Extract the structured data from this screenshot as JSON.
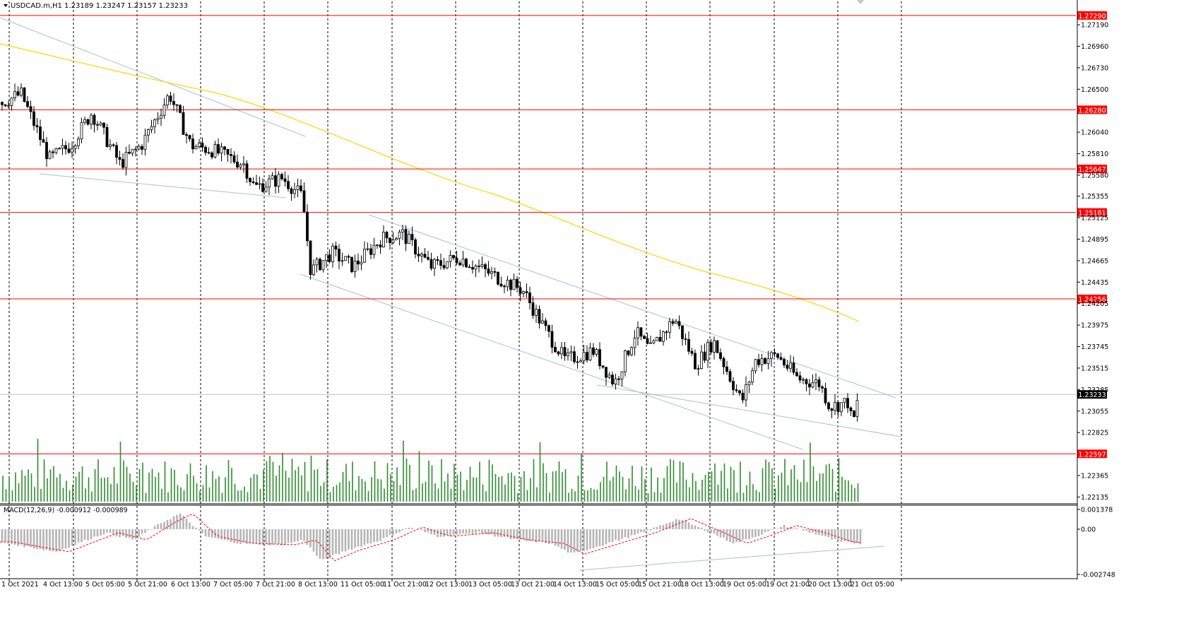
{
  "title": {
    "symbol_line": "USDCAD.m,H1  1.23189 1.23247 1.23157 1.23233"
  },
  "macd_label": "MACD(12,26,9) -0.000912 -0.000989",
  "price_axis": {
    "ticks": [
      "1.27190",
      "1.26960",
      "1.26730",
      "1.26500",
      "1.26040",
      "1.25810",
      "1.25580",
      "1.25355",
      "1.25125",
      "1.24895",
      "1.24665",
      "1.24435",
      "1.24205",
      "1.23975",
      "1.23745",
      "1.23515",
      "1.23285",
      "1.23055",
      "1.22825",
      "1.22365",
      "1.22135"
    ],
    "min": 1.2207,
    "max": 1.2744,
    "current_price": "1.23233"
  },
  "macd_axis": {
    "ticks": [
      "0.001378",
      "0.00",
      "-0.002748"
    ]
  },
  "levels": [
    {
      "label": "1.27290",
      "value": 1.2729
    },
    {
      "label": "1.26280",
      "value": 1.2628
    },
    {
      "label": "1.25647",
      "value": 1.25647
    },
    {
      "label": "1.25181",
      "value": 1.25181
    },
    {
      "label": "1.24256",
      "value": 1.24256
    },
    {
      "label": "1.22597",
      "value": 1.22597
    }
  ],
  "time_axis": {
    "labels": [
      "1 Oct 2021",
      "4 Oct 13:00",
      "5 Oct 05:00",
      "5 Oct 21:00",
      "6 Oct 13:00",
      "7 Oct 05:00",
      "7 Oct 21:00",
      "8 Oct 13:00",
      "11 Oct 05:00",
      "11 Oct 21:00",
      "12 Oct 13:00",
      "13 Oct 05:00",
      "13 Oct 21:00",
      "14 Oct 13:00",
      "15 Oct 05:00",
      "15 Oct 21:00",
      "18 Oct 13:00",
      "19 Oct 05:00",
      "19 Oct 21:00",
      "20 Oct 13:00",
      "21 Oct 05:00"
    ]
  },
  "colors": {
    "candle": "#000000",
    "level": "#ff0000",
    "level_label_bg": "#ff0000",
    "ma": "#ffd400",
    "trendline": "#a9c0d8",
    "volume": "#2e8b2e",
    "macd_hist": "#b4b4b4",
    "macd_signal": "#ff0000",
    "current_label_bg": "#000000"
  },
  "icons": {
    "menu": "triangle-down-icon"
  }
}
